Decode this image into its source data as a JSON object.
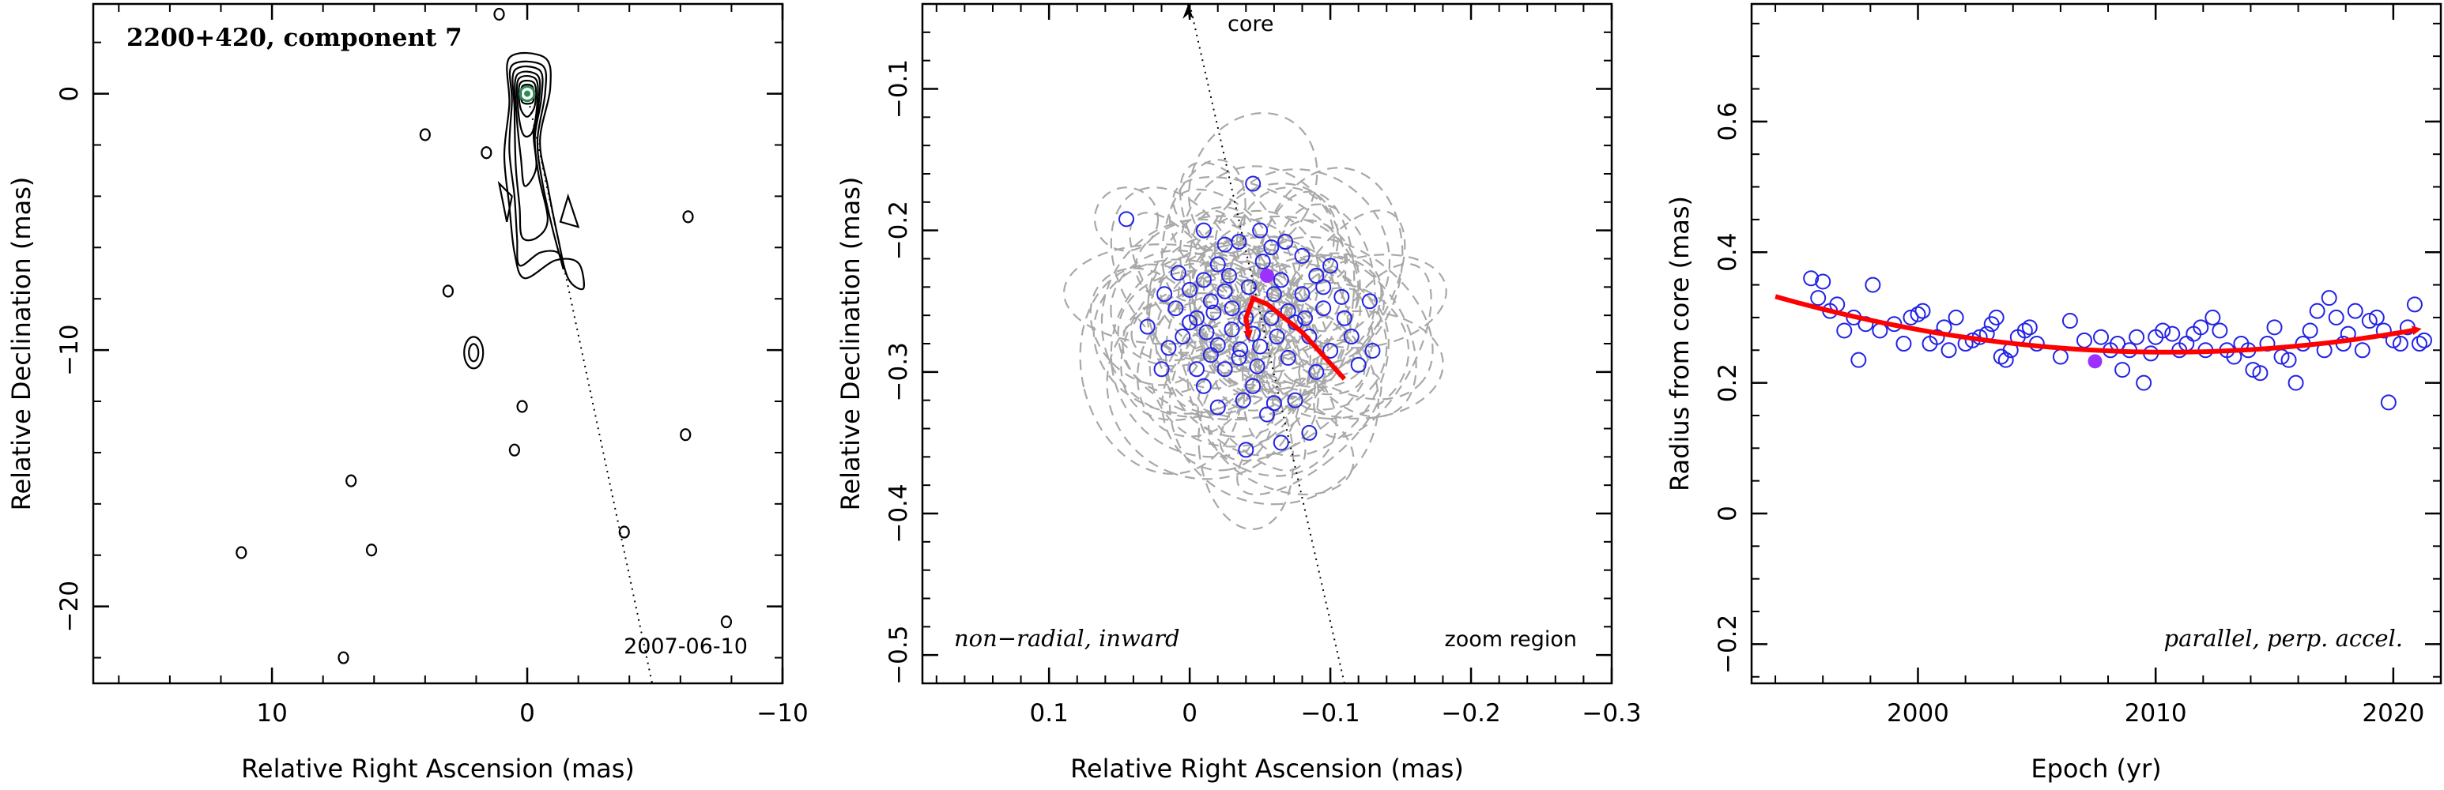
{
  "chart_data": [
    {
      "type": "contour",
      "panel": "image",
      "title": "2200+420, component 7",
      "date_label": "2007-06-10",
      "xlabel": "Relative Right Ascension (mas)",
      "ylabel": "Relative Declination (mas)",
      "xlim": [
        17,
        -10
      ],
      "ylim": [
        -23,
        3.5
      ],
      "xticks": [
        10,
        0,
        -10
      ],
      "yticks": [
        0,
        -10,
        -20
      ],
      "core_marker_color": "#2e8b57",
      "jet_direction_line": {
        "from": [
          0,
          0
        ],
        "to": [
          -5,
          -23.5
        ]
      },
      "islands": [
        {
          "x": -6.3,
          "y": -4.8
        },
        {
          "x": 4.0,
          "y": -1.6
        },
        {
          "x": 3.1,
          "y": -7.7
        },
        {
          "x": 2.1,
          "y": -10.1
        },
        {
          "x": 0.2,
          "y": -12.2
        },
        {
          "x": 0.5,
          "y": -13.9
        },
        {
          "x": -6.2,
          "y": -13.3
        },
        {
          "x": 6.9,
          "y": -15.1
        },
        {
          "x": 6.1,
          "y": -17.8
        },
        {
          "x": 11.2,
          "y": -17.9
        },
        {
          "x": 7.2,
          "y": -22.0
        },
        {
          "x": -3.8,
          "y": -17.1
        },
        {
          "x": -7.8,
          "y": -20.6
        },
        {
          "x": 1.1,
          "y": 3.1
        },
        {
          "x": 1.6,
          "y": -2.3
        }
      ]
    },
    {
      "type": "scatter",
      "panel": "zoom",
      "labels": {
        "top": "core",
        "bottom_left": "non−radial, inward",
        "bottom_right": "zoom region"
      },
      "xlabel": "Relative Right Ascension (mas)",
      "ylabel": "Relative Declination (mas)",
      "xlim": [
        0.19,
        -0.3
      ],
      "ylim": [
        -0.52,
        -0.04
      ],
      "xticks": [
        0.1,
        0,
        -0.1,
        -0.2,
        -0.3
      ],
      "yticks": [
        -0.1,
        -0.2,
        -0.3,
        -0.4,
        -0.5
      ],
      "highlight_point": {
        "x": -0.055,
        "y": -0.232
      },
      "core_line": {
        "from": [
          0.0,
          -0.04
        ],
        "to": [
          -0.11,
          -0.52
        ]
      },
      "motion_path": [
        [
          -0.11,
          -0.305
        ],
        [
          -0.08,
          -0.272
        ],
        [
          -0.055,
          -0.252
        ],
        [
          -0.045,
          -0.248
        ],
        [
          -0.04,
          -0.262
        ],
        [
          -0.042,
          -0.274
        ]
      ],
      "points_note": "Individual epoch positions (blue circles) read approximately from the plot",
      "points": [
        [
          0.045,
          -0.192
        ],
        [
          -0.045,
          -0.167
        ],
        [
          -0.035,
          -0.208
        ],
        [
          -0.02,
          -0.224
        ],
        [
          -0.01,
          -0.235
        ],
        [
          0.0,
          -0.242
        ],
        [
          0.01,
          -0.255
        ],
        [
          -0.005,
          -0.262
        ],
        [
          -0.015,
          -0.25
        ],
        [
          -0.025,
          -0.243
        ],
        [
          -0.03,
          -0.255
        ],
        [
          -0.04,
          -0.262
        ],
        [
          -0.045,
          -0.273
        ],
        [
          -0.05,
          -0.282
        ],
        [
          -0.035,
          -0.29
        ],
        [
          -0.025,
          -0.298
        ],
        [
          -0.02,
          -0.281
        ],
        [
          -0.012,
          -0.272
        ],
        [
          0.0,
          -0.265
        ],
        [
          0.005,
          -0.275
        ],
        [
          0.015,
          -0.283
        ],
        [
          -0.06,
          -0.245
        ],
        [
          -0.065,
          -0.235
        ],
        [
          -0.07,
          -0.257
        ],
        [
          -0.075,
          -0.265
        ],
        [
          -0.08,
          -0.245
        ],
        [
          -0.085,
          -0.275
        ],
        [
          -0.095,
          -0.255
        ],
        [
          -0.1,
          -0.285
        ],
        [
          -0.108,
          -0.247
        ],
        [
          -0.115,
          -0.275
        ],
        [
          -0.12,
          -0.295
        ],
        [
          -0.13,
          -0.285
        ],
        [
          -0.045,
          -0.31
        ],
        [
          -0.06,
          -0.322
        ],
        [
          -0.055,
          -0.33
        ],
        [
          -0.075,
          -0.32
        ],
        [
          -0.04,
          -0.355
        ],
        [
          -0.065,
          -0.35
        ],
        [
          -0.085,
          -0.343
        ],
        [
          -0.02,
          -0.325
        ],
        [
          -0.01,
          -0.31
        ],
        [
          0.03,
          -0.268
        ],
        [
          0.02,
          -0.298
        ],
        [
          -0.01,
          -0.2
        ],
        [
          -0.025,
          -0.21
        ],
        [
          -0.052,
          -0.222
        ],
        [
          -0.068,
          -0.208
        ],
        [
          -0.08,
          -0.218
        ],
        [
          -0.09,
          -0.232
        ],
        [
          -0.1,
          -0.225
        ],
        [
          -0.11,
          -0.262
        ],
        [
          -0.03,
          -0.27
        ],
        [
          -0.036,
          -0.284
        ],
        [
          -0.048,
          -0.296
        ],
        [
          -0.058,
          -0.262
        ],
        [
          -0.07,
          -0.29
        ],
        [
          -0.09,
          -0.3
        ],
        [
          0.008,
          -0.23
        ],
        [
          0.018,
          -0.245
        ],
        [
          -0.042,
          -0.24
        ],
        [
          -0.028,
          -0.232
        ],
        [
          -0.017,
          -0.258
        ],
        [
          -0.062,
          -0.275
        ],
        [
          -0.082,
          -0.262
        ],
        [
          -0.095,
          -0.24
        ],
        [
          -0.05,
          -0.2
        ],
        [
          -0.058,
          -0.212
        ],
        [
          -0.015,
          -0.288
        ],
        [
          -0.005,
          -0.298
        ],
        [
          -0.038,
          -0.32
        ],
        [
          -0.128,
          -0.25
        ]
      ]
    },
    {
      "type": "scatter",
      "panel": "radius",
      "labels": {
        "bottom_right": "parallel, perp. accel."
      },
      "xlabel": "Epoch (yr)",
      "ylabel": "Radius from core (mas)",
      "xlim": [
        1993,
        2022
      ],
      "ylim": [
        -0.26,
        0.78
      ],
      "xticks": [
        2000,
        2010,
        2020
      ],
      "yticks": [
        -0.2,
        0,
        0.2,
        0.4,
        0.6
      ],
      "highlight_point": {
        "x": 2007.45,
        "y": 0.233
      },
      "fit_curve": {
        "type": "quadratic",
        "points": [
          [
            1994,
            0.325
          ],
          [
            2000,
            0.283
          ],
          [
            2005,
            0.258
          ],
          [
            2010,
            0.247
          ],
          [
            2015,
            0.252
          ],
          [
            2021,
            0.277
          ]
        ]
      },
      "points_note": "Individual epoch radii (blue circles) read approximately from the plot",
      "points": [
        [
          1995.5,
          0.36
        ],
        [
          1995.8,
          0.33
        ],
        [
          1996.0,
          0.355
        ],
        [
          1996.3,
          0.31
        ],
        [
          1996.6,
          0.32
        ],
        [
          1996.9,
          0.28
        ],
        [
          1997.3,
          0.3
        ],
        [
          1997.5,
          0.235
        ],
        [
          1997.8,
          0.29
        ],
        [
          1998.1,
          0.35
        ],
        [
          1998.4,
          0.28
        ],
        [
          1999.0,
          0.29
        ],
        [
          1999.4,
          0.26
        ],
        [
          1999.7,
          0.3
        ],
        [
          2000.0,
          0.305
        ],
        [
          2000.2,
          0.31
        ],
        [
          2000.5,
          0.26
        ],
        [
          2000.8,
          0.27
        ],
        [
          2001.1,
          0.285
        ],
        [
          2001.3,
          0.25
        ],
        [
          2001.6,
          0.3
        ],
        [
          2002.0,
          0.26
        ],
        [
          2002.3,
          0.265
        ],
        [
          2002.6,
          0.27
        ],
        [
          2002.9,
          0.275
        ],
        [
          2003.1,
          0.29
        ],
        [
          2003.3,
          0.3
        ],
        [
          2003.5,
          0.24
        ],
        [
          2003.7,
          0.235
        ],
        [
          2003.9,
          0.25
        ],
        [
          2004.2,
          0.27
        ],
        [
          2004.5,
          0.28
        ],
        [
          2004.7,
          0.285
        ],
        [
          2005.0,
          0.26
        ],
        [
          2006.0,
          0.24
        ],
        [
          2006.4,
          0.295
        ],
        [
          2007.0,
          0.265
        ],
        [
          2007.7,
          0.27
        ],
        [
          2008.1,
          0.25
        ],
        [
          2008.4,
          0.26
        ],
        [
          2008.6,
          0.22
        ],
        [
          2008.9,
          0.25
        ],
        [
          2009.2,
          0.27
        ],
        [
          2009.5,
          0.2
        ],
        [
          2009.8,
          0.245
        ],
        [
          2010.0,
          0.27
        ],
        [
          2010.3,
          0.28
        ],
        [
          2010.7,
          0.275
        ],
        [
          2011.0,
          0.25
        ],
        [
          2011.3,
          0.26
        ],
        [
          2011.6,
          0.275
        ],
        [
          2011.9,
          0.285
        ],
        [
          2012.1,
          0.25
        ],
        [
          2012.4,
          0.3
        ],
        [
          2012.7,
          0.28
        ],
        [
          2013.0,
          0.25
        ],
        [
          2013.3,
          0.24
        ],
        [
          2013.6,
          0.26
        ],
        [
          2013.9,
          0.25
        ],
        [
          2014.1,
          0.22
        ],
        [
          2014.4,
          0.215
        ],
        [
          2014.7,
          0.26
        ],
        [
          2015.0,
          0.285
        ],
        [
          2015.3,
          0.24
        ],
        [
          2015.6,
          0.235
        ],
        [
          2015.9,
          0.2
        ],
        [
          2016.2,
          0.26
        ],
        [
          2016.5,
          0.28
        ],
        [
          2016.8,
          0.31
        ],
        [
          2017.1,
          0.25
        ],
        [
          2017.3,
          0.33
        ],
        [
          2017.6,
          0.3
        ],
        [
          2017.9,
          0.26
        ],
        [
          2018.1,
          0.275
        ],
        [
          2018.4,
          0.31
        ],
        [
          2018.7,
          0.25
        ],
        [
          2019.0,
          0.295
        ],
        [
          2019.3,
          0.3
        ],
        [
          2019.6,
          0.28
        ],
        [
          2019.8,
          0.17
        ],
        [
          2020.0,
          0.265
        ],
        [
          2020.3,
          0.26
        ],
        [
          2020.6,
          0.285
        ],
        [
          2020.9,
          0.32
        ],
        [
          2021.1,
          0.26
        ],
        [
          2021.3,
          0.265
        ]
      ]
    }
  ],
  "colors": {
    "point": "#2323e6",
    "highlight": "#9b30ff",
    "fit": "#ff0000",
    "error_ellipse": "#a8a8a8",
    "contour": "#000000",
    "core": "#2e8b57"
  }
}
